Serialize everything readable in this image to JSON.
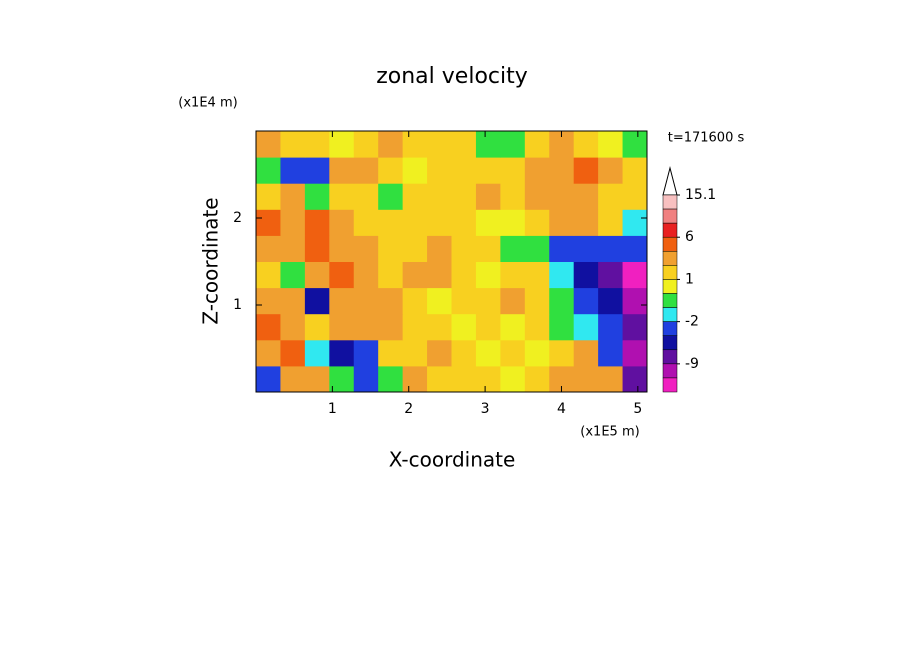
{
  "chart_data": {
    "type": "contour",
    "title": "zonal velocity",
    "x_label": "X-coordinate",
    "y_label": "Z-coordinate",
    "x_scale_label": "(x1E5 m)",
    "y_scale_label": "(x1E4 m)",
    "time_label": "t=171600 s",
    "xlim": [
      0,
      5.12
    ],
    "ylim": [
      0,
      3
    ],
    "xticks": [
      1,
      2,
      3,
      4,
      5
    ],
    "yticks": [
      1,
      2
    ],
    "levels": [
      15.1,
      12,
      9,
      6,
      4,
      2,
      1,
      0,
      -1,
      -2,
      -4,
      -6,
      -9,
      -12,
      -15
    ],
    "colors": [
      "#f8c0c0",
      "#f08080",
      "#e82020",
      "#f06010",
      "#f0a030",
      "#f8d020",
      "#f0f020",
      "#30e040",
      "#30e8f0",
      "#2040e0",
      "#1010a0",
      "#6010a0",
      "#b010b0",
      "#f020c0"
    ],
    "colorbar_ticks": [
      15.1,
      6,
      1,
      -2,
      -9
    ],
    "x": [
      0.16,
      0.48,
      0.8,
      1.12,
      1.44,
      1.76,
      2.08,
      2.4,
      2.72,
      3.04,
      3.36,
      3.68,
      4.0,
      4.32,
      4.64,
      4.96
    ],
    "y": [
      0.15,
      0.45,
      0.75,
      1.05,
      1.35,
      1.65,
      1.95,
      2.25,
      2.55,
      2.85
    ],
    "z": [
      [
        -3,
        2,
        3,
        -1,
        -4,
        -1,
        2,
        1,
        1,
        1,
        0.5,
        1,
        2,
        3,
        2,
        -8
      ],
      [
        3,
        4,
        -2,
        -5,
        -3,
        1,
        1,
        2,
        1,
        0.5,
        1,
        0.5,
        1,
        2,
        -3,
        -10
      ],
      [
        4,
        3,
        1,
        2,
        2,
        3,
        1,
        1,
        0.5,
        1,
        0.5,
        1,
        -1,
        -2,
        -4,
        -9
      ],
      [
        3,
        2,
        -5,
        3,
        2,
        2,
        1,
        0.5,
        1,
        1,
        2,
        1,
        -1,
        -3,
        -6,
        -12
      ],
      [
        1,
        -1,
        2,
        4,
        3,
        1,
        2,
        3,
        1,
        0.5,
        1,
        1,
        -2,
        -5,
        -7,
        -13
      ],
      [
        2,
        3,
        4,
        3,
        2,
        1,
        1,
        2,
        1,
        1,
        -0.5,
        -1,
        -3,
        -4,
        -3,
        -4
      ],
      [
        4,
        3,
        5,
        2,
        1,
        1,
        1,
        1,
        1,
        0.5,
        0.5,
        1,
        2,
        3,
        1,
        -2
      ],
      [
        1,
        2,
        -1,
        1,
        1,
        -1,
        1,
        1,
        1,
        2,
        1,
        2,
        3,
        2,
        1,
        1
      ],
      [
        -1,
        -3,
        -4,
        3,
        2,
        1,
        0.5,
        1,
        1,
        1,
        1,
        2,
        3,
        4,
        2,
        1
      ],
      [
        2,
        1,
        1,
        0.5,
        1,
        2,
        1,
        1,
        1,
        -1,
        -0.5,
        1,
        2,
        1,
        0.5,
        -1
      ]
    ]
  }
}
